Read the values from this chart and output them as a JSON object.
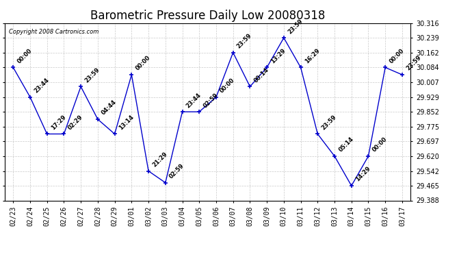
{
  "title": "Barometric Pressure Daily Low 20080318",
  "copyright": "Copyright 2008 Cartronics.com",
  "line_color": "#0000cc",
  "marker_color": "#0000cc",
  "label_color": "#000000",
  "bg_color": "#ffffff",
  "grid_color": "#bbbbbb",
  "x_labels": [
    "02/23",
    "02/24",
    "02/25",
    "02/26",
    "02/27",
    "02/28",
    "02/29",
    "03/01",
    "03/02",
    "03/03",
    "03/04",
    "03/05",
    "03/06",
    "03/07",
    "03/08",
    "03/09",
    "03/10",
    "03/11",
    "03/12",
    "03/13",
    "03/14",
    "03/15",
    "03/16",
    "03/17"
  ],
  "y_values": [
    30.084,
    29.929,
    29.736,
    29.736,
    29.984,
    29.813,
    29.736,
    30.046,
    29.542,
    29.481,
    29.852,
    29.852,
    29.929,
    30.162,
    29.984,
    30.084,
    30.239,
    30.084,
    29.736,
    29.62,
    29.465,
    29.62,
    30.084,
    30.046
  ],
  "time_labels": [
    "00:00",
    "23:44",
    "17:29",
    "02:29",
    "23:59",
    "04:44",
    "13:14",
    "00:00",
    "21:29",
    "02:59",
    "23:44",
    "02:59",
    "00:00",
    "23:59",
    "00:14",
    "13:29",
    "23:59",
    "16:29",
    "23:59",
    "05:14",
    "14:29",
    "00:00",
    "00:00",
    "23:59"
  ],
  "ylim_min": 29.388,
  "ylim_max": 30.316,
  "yticks": [
    29.388,
    29.465,
    29.542,
    29.62,
    29.697,
    29.775,
    29.852,
    29.929,
    30.007,
    30.084,
    30.162,
    30.239,
    30.316
  ],
  "title_fontsize": 12,
  "tick_fontsize": 7,
  "label_fontsize": 7
}
